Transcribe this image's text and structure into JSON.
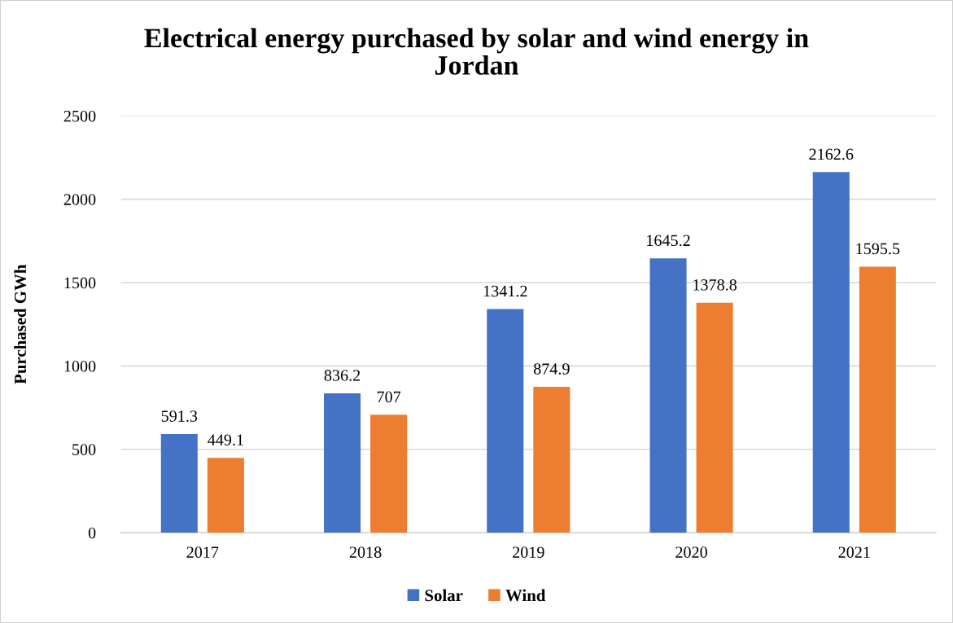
{
  "chart_data": {
    "type": "bar",
    "title": "Electrical energy purchased by solar and wind energy in\nJordan",
    "ylabel": "Purchased GWh",
    "categories": [
      "2017",
      "2018",
      "2019",
      "2020",
      "2021"
    ],
    "series": [
      {
        "name": "Solar",
        "color": "#4472c4",
        "values": [
          591.3,
          836.2,
          1341.2,
          1645.2,
          2162.6
        ]
      },
      {
        "name": "Wind",
        "color": "#ed7d31",
        "values": [
          449.1,
          707,
          874.9,
          1378.8,
          1595.5
        ]
      }
    ],
    "ylim": [
      0,
      2500
    ],
    "yticks": [
      0,
      500,
      1000,
      1500,
      2000,
      2500
    ],
    "grid": "y",
    "legend": "bottom",
    "data_labels": true
  }
}
